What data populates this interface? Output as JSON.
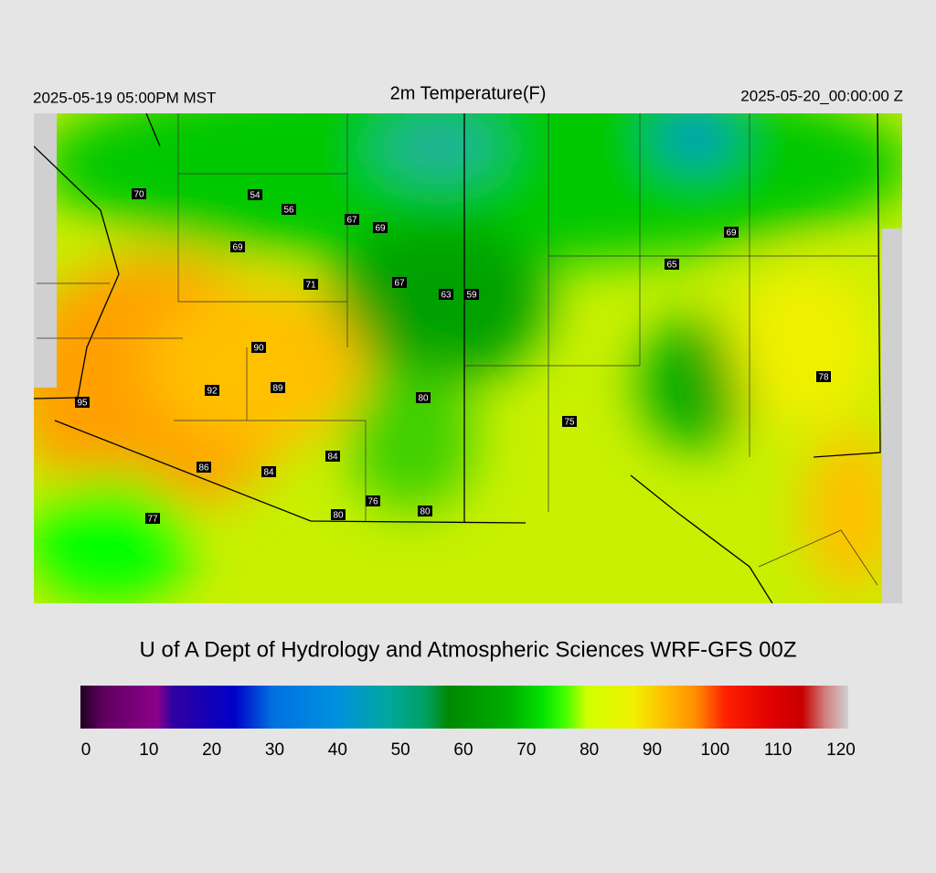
{
  "header": {
    "left": "2025-05-19 05:00PM MST",
    "title": "2m Temperature(F)",
    "right": "2025-05-20_00:00:00 Z"
  },
  "map": {
    "stations": [
      70,
      54,
      56,
      67,
      69,
      69,
      71,
      67,
      63,
      59,
      65,
      69,
      90,
      92,
      89,
      95,
      80,
      75,
      78,
      84,
      86,
      84,
      76,
      80,
      80,
      77
    ]
  },
  "credit": "U of A Dept of Hydrology and Atmospheric Sciences WRF-GFS 00Z",
  "colorbar": {
    "range": [
      0,
      120
    ],
    "ticks": [
      0,
      10,
      20,
      30,
      40,
      50,
      60,
      70,
      80,
      90,
      100,
      110,
      120
    ]
  }
}
